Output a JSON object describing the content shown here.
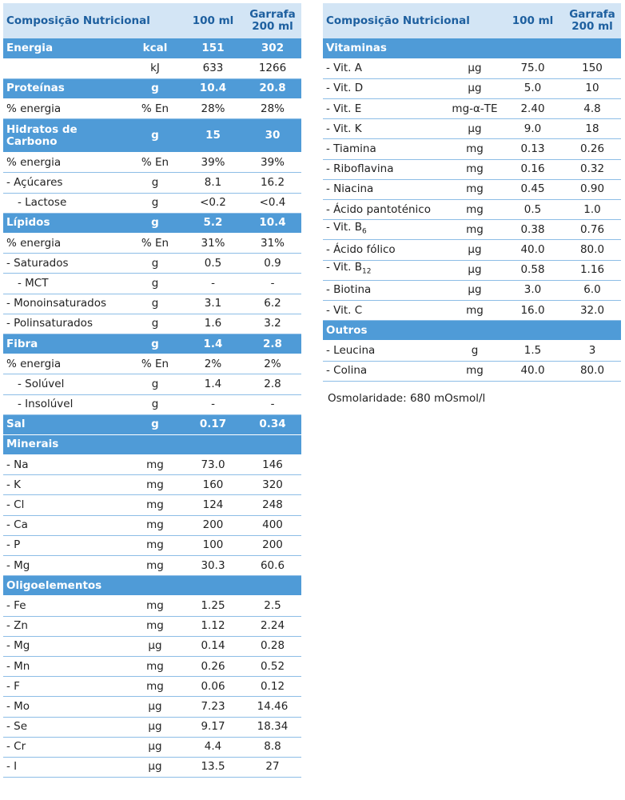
{
  "left_table": {
    "header": [
      "Composição Nutricional",
      "100 ml",
      "Garrafa\n200 ml"
    ],
    "rows": [
      {
        "cells": [
          "Energia",
          "kcal",
          "151",
          "302"
        ],
        "section": true
      },
      {
        "cells": [
          null,
          "kJ",
          "633",
          "1266"
        ]
      },
      {
        "cells": [
          "Proteínas",
          "g",
          "10.4",
          "20.8"
        ],
        "section": true
      },
      {
        "cells": [
          "% energia",
          "% En",
          "28%",
          "28%"
        ]
      },
      {
        "cells": [
          "Hidratos de\nCarbono",
          "g",
          "15",
          "30"
        ],
        "section": true,
        "tall": true
      },
      {
        "cells": [
          "% energia",
          "% En",
          "39%",
          "39%"
        ]
      },
      {
        "cells": [
          "- Açúcares",
          "g",
          "8.1",
          "16.2"
        ]
      },
      {
        "cells": [
          "- Lactose",
          "g",
          "<0.2",
          "<0.4"
        ],
        "indent": true
      },
      {
        "cells": [
          "Lípidos",
          "g",
          "5.2",
          "10.4"
        ],
        "section": true
      },
      {
        "cells": [
          "% energia",
          "% En",
          "31%",
          "31%"
        ]
      },
      {
        "cells": [
          "- Saturados",
          "g",
          "0.5",
          "0.9"
        ]
      },
      {
        "cells": [
          "- MCT",
          "g",
          "-",
          "-"
        ],
        "indent": true
      },
      {
        "cells": [
          "- Monoinsaturados",
          "g",
          "3.1",
          "6.2"
        ]
      },
      {
        "cells": [
          "- Polinsaturados",
          "g",
          "1.6",
          "3.2"
        ]
      },
      {
        "cells": [
          "Fibra",
          "g",
          "1.4",
          "2.8"
        ],
        "section": true
      },
      {
        "cells": [
          "% energia",
          "% En",
          "2%",
          "2%"
        ]
      },
      {
        "cells": [
          "- Solúvel",
          "g",
          "1.4",
          "2.8"
        ],
        "indent": true
      },
      {
        "cells": [
          "- Insolúvel",
          "g",
          "-",
          "-"
        ],
        "indent": true
      },
      {
        "cells": [
          "Sal",
          "g",
          "0.17",
          "0.34"
        ],
        "section": true
      },
      {
        "cells": [
          "Minerais"
        ],
        "section": true
      },
      {
        "cells": [
          "- Na",
          "mg",
          "73.0",
          "146"
        ]
      },
      {
        "cells": [
          "- K",
          "mg",
          "160",
          "320"
        ]
      },
      {
        "cells": [
          "- Cl",
          "mg",
          "124",
          "248"
        ]
      },
      {
        "cells": [
          "- Ca",
          "mg",
          "200",
          "400"
        ]
      },
      {
        "cells": [
          "- P",
          "mg",
          "100",
          "200"
        ]
      },
      {
        "cells": [
          "- Mg",
          "mg",
          "30.3",
          "60.6"
        ]
      },
      {
        "cells": [
          "Oligoelementos"
        ],
        "section": true
      },
      {
        "cells": [
          "- Fe",
          "mg",
          "1.25",
          "2.5"
        ]
      },
      {
        "cells": [
          "- Zn",
          "mg",
          "1.12",
          "2.24"
        ]
      },
      {
        "cells": [
          "- Mg",
          "µg",
          "0.14",
          "0.28"
        ]
      },
      {
        "cells": [
          "- Mn",
          "mg",
          "0.26",
          "0.52"
        ]
      },
      {
        "cells": [
          "- F",
          "mg",
          "0.06",
          "0.12"
        ]
      },
      {
        "cells": [
          "- Mo",
          "µg",
          "7.23",
          "14.46"
        ]
      },
      {
        "cells": [
          "- Se",
          "µg",
          "9.17",
          "18.34"
        ]
      },
      {
        "cells": [
          "- Cr",
          "µg",
          "4.4",
          "8.8"
        ]
      },
      {
        "cells": [
          "- I",
          "µg",
          "13.5",
          "27"
        ]
      }
    ]
  },
  "right_table": {
    "header": [
      "Composição Nutricional",
      "100 ml",
      "Garrafa\n200 ml"
    ],
    "rows": [
      {
        "cells": [
          "Vitaminas"
        ],
        "section": true
      },
      {
        "cells": [
          "- Vit. A",
          "µg",
          "75.0",
          "150"
        ]
      },
      {
        "cells": [
          "- Vit. D",
          "µg",
          "5.0",
          "10"
        ]
      },
      {
        "cells": [
          "- Vit. E",
          "mg-α-TE",
          "2.40",
          "4.8"
        ]
      },
      {
        "cells": [
          "- Vit. K",
          "µg",
          "9.0",
          "18"
        ]
      },
      {
        "cells": [
          "- Tiamina",
          "mg",
          "0.13",
          "0.26"
        ]
      },
      {
        "cells": [
          "- Riboflavina",
          "mg",
          "0.16",
          "0.32"
        ]
      },
      {
        "cells": [
          "- Niacina",
          "mg",
          "0.45",
          "0.90"
        ]
      },
      {
        "cells": [
          "- Ácido pantoténico",
          "mg",
          "0.5",
          "1.0"
        ]
      },
      {
        "cells": [
          {
            "text": "- Vit. B",
            "sub": "6"
          },
          "mg",
          "0.38",
          "0.76"
        ]
      },
      {
        "cells": [
          "- Ácido fólico",
          "µg",
          "40.0",
          "80.0"
        ]
      },
      {
        "cells": [
          {
            "text": "- Vit. B",
            "sub": "12"
          },
          "µg",
          "0.58",
          "1.16"
        ]
      },
      {
        "cells": [
          "- Biotina",
          "µg",
          "3.0",
          "6.0"
        ]
      },
      {
        "cells": [
          "- Vit. C",
          "mg",
          "16.0",
          "32.0"
        ]
      },
      {
        "cells": [
          "Outros"
        ],
        "section": true
      },
      {
        "cells": [
          "- Leucina",
          "g",
          "1.5",
          "3"
        ]
      },
      {
        "cells": [
          "- Colina",
          "mg",
          "40.0",
          "80.0"
        ]
      }
    ]
  },
  "note": "Osmolaridade: 680 mOsmol/l"
}
